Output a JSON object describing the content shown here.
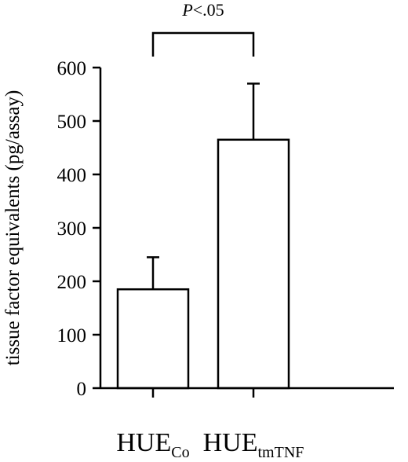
{
  "chart_data": {
    "type": "bar",
    "title": "",
    "xlabel": "",
    "ylabel": "tissue factor equivalents (pg/assay)",
    "ylim": [
      0,
      600
    ],
    "yticks": [
      0,
      100,
      200,
      300,
      400,
      500,
      600
    ],
    "grid": false,
    "categories": [
      {
        "main": "HUE",
        "sub": "Co"
      },
      {
        "main": "HUE",
        "sub": "tmTNF"
      }
    ],
    "values": [
      185,
      465
    ],
    "error_upper": [
      60,
      105
    ],
    "bar_fill": "#ffffff",
    "bar_stroke": "#000000",
    "significance": {
      "between": [
        0,
        1
      ],
      "p_letter": "P",
      "p_rest": "<.05"
    }
  }
}
